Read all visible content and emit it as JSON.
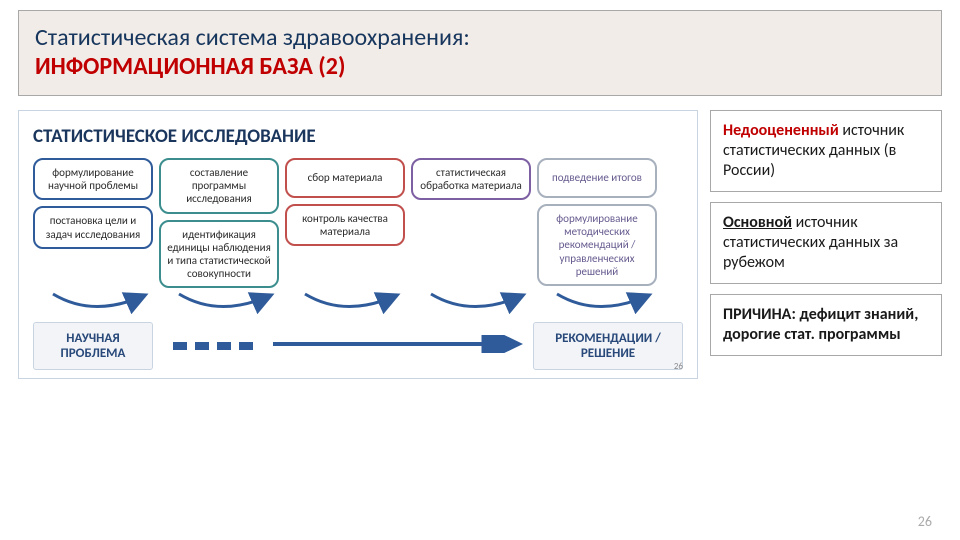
{
  "title": {
    "line1": "Статистическая система здравоохранения:",
    "line2": "ИНФОРМАЦИОННАЯ БАЗА (2)"
  },
  "diagram": {
    "heading": "СТАТИСТИЧЕСКОЕ ИССЛЕДОВАНИЕ",
    "columns": [
      {
        "color": "bc-blue",
        "cells": [
          "формулирование научной проблемы",
          "постановка цели и задач исследования"
        ]
      },
      {
        "color": "bc-teal",
        "cells": [
          "составление программы исследования",
          "идентификация единицы наблюдения и типа статистической совокупности"
        ]
      },
      {
        "color": "bc-red",
        "cells": [
          "сбор материала",
          "контроль качества материала"
        ]
      },
      {
        "color": "bc-purple",
        "cells": [
          "статистическая обработка материала"
        ]
      },
      {
        "color": "bc-gray",
        "cells": [
          "подведение итогов",
          "формулирование методических рекомендаций / управленческих решений"
        ],
        "text_class": "purple"
      }
    ],
    "bottom": {
      "left": "НАУЧНАЯ ПРОБЛЕМА",
      "right": "РЕКОМЕНДАЦИИ / РЕШЕНИЕ"
    },
    "colors": {
      "connector_arrow": "#2f5b9a",
      "dot": "#2f5b9a"
    }
  },
  "sideboxes": [
    {
      "html_parts": [
        {
          "t": "span",
          "cls": "red",
          "txt": "Недооцененный"
        },
        {
          "t": "text",
          "txt": " источник статистических данных (в России)"
        }
      ]
    },
    {
      "html_parts": [
        {
          "t": "span",
          "cls": "uline",
          "txt": "Основной"
        },
        {
          "t": "text",
          "txt": " источник статистических данных за рубежом"
        }
      ]
    },
    {
      "html_parts": [
        {
          "t": "b",
          "txt": "ПРИЧИНА:"
        },
        {
          "t": "b",
          "txt": " дефицит знаний, дорогие стат. программы"
        }
      ]
    }
  ],
  "page_number_main": "26",
  "page_number_inner": "26"
}
